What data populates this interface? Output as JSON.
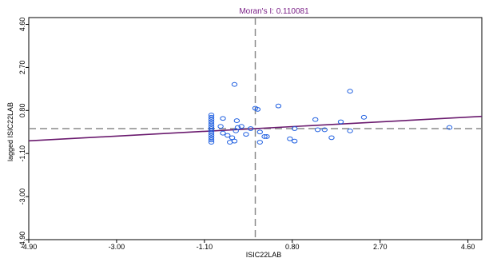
{
  "chart_data": {
    "type": "scatter",
    "title": "Moran's I: 0.110081",
    "xlabel": "ISIC22LAB",
    "ylabel": "lagged ISIC22LAB",
    "xlim": [
      -4.9,
      4.9
    ],
    "ylim": [
      -4.9,
      4.9
    ],
    "x_ticks": [
      "-4.90",
      "-3.00",
      "-1.10",
      "0.80",
      "2.70",
      "4.60"
    ],
    "y_ticks": [
      "4.60",
      "2.70",
      "0.80",
      "-1.10",
      "-3.00",
      "-4.90"
    ],
    "slope": 0.110081,
    "x_mean": 0.0,
    "y_mean": 0.0,
    "colors": {
      "points": "#1f5fe0",
      "regression": "#6a1a6e",
      "reference": "#8a8a8a",
      "title": "#7a1f86"
    },
    "points": [
      {
        "x": -0.45,
        "y": 1.95
      },
      {
        "x": -0.4,
        "y": 0.35
      },
      {
        "x": -0.38,
        "y": 0.05
      },
      {
        "x": -0.42,
        "y": -0.1
      },
      {
        "x": -0.5,
        "y": -0.4
      },
      {
        "x": -0.45,
        "y": -0.55
      },
      {
        "x": -0.6,
        "y": -0.3
      },
      {
        "x": -0.55,
        "y": -0.6
      },
      {
        "x": 0.0,
        "y": 0.9
      },
      {
        "x": 0.05,
        "y": 0.85
      },
      {
        "x": -0.1,
        "y": 0.0
      },
      {
        "x": -0.2,
        "y": -0.25
      },
      {
        "x": 0.1,
        "y": -0.15
      },
      {
        "x": 0.25,
        "y": -0.35
      },
      {
        "x": 0.1,
        "y": -0.6
      },
      {
        "x": 0.5,
        "y": 1.0
      },
      {
        "x": 0.85,
        "y": 0.0
      },
      {
        "x": 0.75,
        "y": -0.45
      },
      {
        "x": 0.85,
        "y": -0.55
      },
      {
        "x": 1.3,
        "y": 0.4
      },
      {
        "x": 1.35,
        "y": -0.05
      },
      {
        "x": 1.5,
        "y": -0.05
      },
      {
        "x": 1.65,
        "y": -0.4
      },
      {
        "x": 1.85,
        "y": 0.3
      },
      {
        "x": 2.05,
        "y": 1.65
      },
      {
        "x": 2.05,
        "y": -0.1
      },
      {
        "x": 2.35,
        "y": 0.5
      },
      {
        "x": 4.2,
        "y": 0.05
      },
      {
        "x": -0.95,
        "y": 0.6
      },
      {
        "x": -0.95,
        "y": 0.5
      },
      {
        "x": -0.95,
        "y": 0.4
      },
      {
        "x": -0.95,
        "y": 0.3
      },
      {
        "x": -0.95,
        "y": 0.2
      },
      {
        "x": -0.95,
        "y": 0.1
      },
      {
        "x": -0.95,
        "y": 0.0
      },
      {
        "x": -0.95,
        "y": -0.1
      },
      {
        "x": -0.95,
        "y": -0.2
      },
      {
        "x": -0.95,
        "y": -0.3
      },
      {
        "x": -0.95,
        "y": -0.4
      },
      {
        "x": -0.95,
        "y": -0.5
      },
      {
        "x": -0.95,
        "y": -0.6
      },
      {
        "x": -0.7,
        "y": 0.45
      },
      {
        "x": -0.75,
        "y": 0.1
      },
      {
        "x": -0.7,
        "y": -0.2
      },
      {
        "x": -0.3,
        "y": 0.1
      },
      {
        "x": 0.2,
        "y": -0.35
      }
    ]
  }
}
